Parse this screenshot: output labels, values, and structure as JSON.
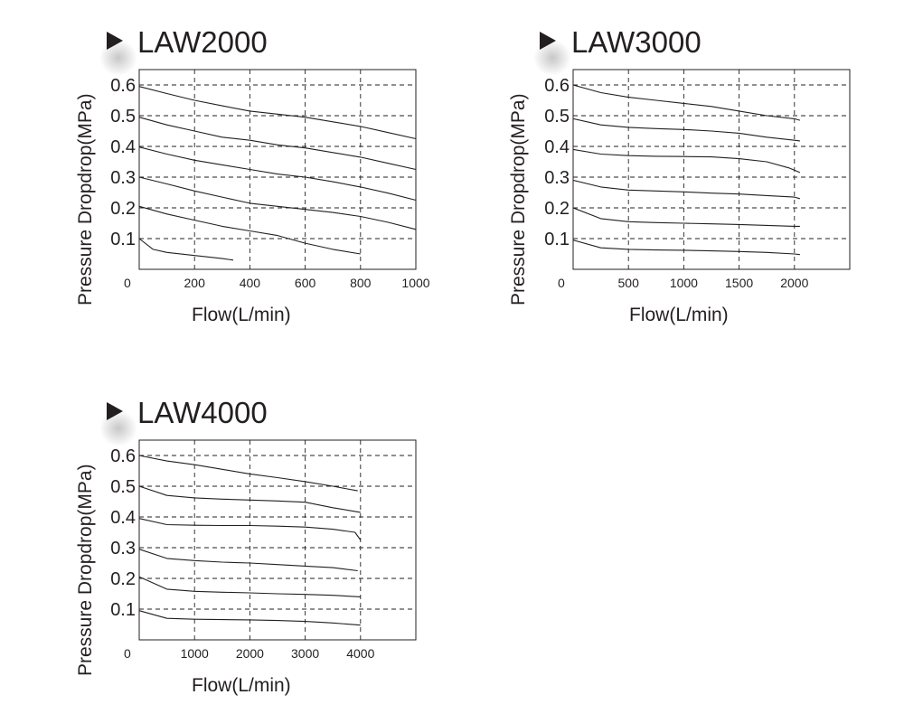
{
  "colors": {
    "ink": "#231f20",
    "grid": "#231f20",
    "frame": "#231f20",
    "shadow": "#bdbdbd"
  },
  "icons": {
    "title_marker": "play-triangle-icon"
  },
  "chart_data": [
    {
      "type": "line",
      "title": "LAW2000",
      "xlabel": "Flow(L/min)",
      "ylabel": "Pressure Dropdrop(MPa)",
      "xlim": [
        0,
        1000
      ],
      "ylim": [
        0,
        0.65
      ],
      "x_ticks": [
        0,
        200,
        400,
        600,
        800,
        1000
      ],
      "x_tick_labels": [
        "0",
        "200",
        "400",
        "600",
        "800",
        "1000"
      ],
      "y_ticks": [
        0.1,
        0.2,
        0.3,
        0.4,
        0.5,
        0.6
      ],
      "y_tick_labels": [
        "0.1",
        "0.2",
        "0.3",
        "0.4",
        "0.5",
        "0.6"
      ],
      "grid": true,
      "series": [
        {
          "x": [
            0,
            100,
            200,
            300,
            400,
            500,
            600,
            700,
            800,
            900,
            1000
          ],
          "y": [
            0.595,
            0.572,
            0.55,
            0.532,
            0.515,
            0.505,
            0.495,
            0.48,
            0.465,
            0.445,
            0.425
          ]
        },
        {
          "x": [
            0,
            100,
            200,
            300,
            400,
            500,
            600,
            700,
            800,
            900,
            1000
          ],
          "y": [
            0.495,
            0.47,
            0.45,
            0.43,
            0.42,
            0.405,
            0.395,
            0.38,
            0.365,
            0.345,
            0.325
          ]
        },
        {
          "x": [
            0,
            100,
            200,
            300,
            400,
            500,
            600,
            700,
            800,
            900,
            1000
          ],
          "y": [
            0.398,
            0.375,
            0.355,
            0.34,
            0.325,
            0.31,
            0.3,
            0.285,
            0.268,
            0.248,
            0.225
          ]
        },
        {
          "x": [
            0,
            100,
            200,
            300,
            400,
            500,
            600,
            700,
            800,
            900,
            1000
          ],
          "y": [
            0.3,
            0.278,
            0.255,
            0.235,
            0.215,
            0.205,
            0.195,
            0.185,
            0.172,
            0.153,
            0.13
          ]
        },
        {
          "x": [
            0,
            100,
            200,
            300,
            400,
            500,
            600,
            700,
            800
          ],
          "y": [
            0.205,
            0.18,
            0.16,
            0.14,
            0.125,
            0.11,
            0.085,
            0.065,
            0.05
          ]
        },
        {
          "x": [
            0,
            50,
            100,
            200,
            300,
            340
          ],
          "y": [
            0.1,
            0.065,
            0.055,
            0.045,
            0.035,
            0.03
          ]
        }
      ]
    },
    {
      "type": "line",
      "title": "LAW3000",
      "xlabel": "Flow(L/min)",
      "ylabel": "Pressure Dropdrop(MPa)",
      "xlim": [
        0,
        2500
      ],
      "ylim": [
        0,
        0.65
      ],
      "x_ticks": [
        0,
        500,
        1000,
        1500,
        2000
      ],
      "x_tick_labels": [
        "0",
        "500",
        "1000",
        "1500",
        "2000"
      ],
      "y_ticks": [
        0.1,
        0.2,
        0.3,
        0.4,
        0.5,
        0.6
      ],
      "y_tick_labels": [
        "0.1",
        "0.2",
        "0.3",
        "0.4",
        "0.5",
        "0.6"
      ],
      "grid": true,
      "series": [
        {
          "x": [
            0,
            250,
            500,
            750,
            1000,
            1250,
            1500,
            1750,
            2000,
            2050
          ],
          "y": [
            0.6,
            0.575,
            0.56,
            0.55,
            0.54,
            0.53,
            0.515,
            0.5,
            0.49,
            0.485
          ]
        },
        {
          "x": [
            0,
            250,
            500,
            750,
            1000,
            1250,
            1500,
            1750,
            2000,
            2050
          ],
          "y": [
            0.49,
            0.47,
            0.462,
            0.458,
            0.455,
            0.45,
            0.443,
            0.43,
            0.42,
            0.418
          ]
        },
        {
          "x": [
            0,
            250,
            500,
            750,
            1000,
            1250,
            1500,
            1750,
            1950,
            2050
          ],
          "y": [
            0.39,
            0.375,
            0.37,
            0.368,
            0.367,
            0.366,
            0.36,
            0.35,
            0.33,
            0.315
          ]
        },
        {
          "x": [
            0,
            250,
            500,
            750,
            1000,
            1250,
            1500,
            1750,
            2000,
            2050
          ],
          "y": [
            0.29,
            0.268,
            0.258,
            0.255,
            0.252,
            0.248,
            0.245,
            0.24,
            0.235,
            0.23
          ]
        },
        {
          "x": [
            0,
            250,
            500,
            750,
            1000,
            1250,
            1500,
            1750,
            2000,
            2050
          ],
          "y": [
            0.2,
            0.165,
            0.155,
            0.152,
            0.15,
            0.148,
            0.146,
            0.143,
            0.14,
            0.14
          ]
        },
        {
          "x": [
            0,
            250,
            500,
            750,
            1000,
            1250,
            1500,
            1750,
            2000,
            2050
          ],
          "y": [
            0.095,
            0.07,
            0.065,
            0.063,
            0.062,
            0.06,
            0.058,
            0.055,
            0.05,
            0.048
          ]
        }
      ]
    },
    {
      "type": "line",
      "title": "LAW4000",
      "xlabel": "Flow(L/min)",
      "ylabel": "Pressure Dropdrop(MPa)",
      "xlim": [
        0,
        5000
      ],
      "ylim": [
        0,
        0.65
      ],
      "x_ticks": [
        0,
        1000,
        2000,
        3000,
        4000
      ],
      "x_tick_labels": [
        "0",
        "1000",
        "2000",
        "3000",
        "4000"
      ],
      "y_ticks": [
        0.1,
        0.2,
        0.3,
        0.4,
        0.5,
        0.6
      ],
      "y_tick_labels": [
        "0.1",
        "0.2",
        "0.3",
        "0.4",
        "0.5",
        "0.6"
      ],
      "grid": true,
      "series": [
        {
          "x": [
            0,
            500,
            1000,
            1500,
            2000,
            2500,
            3000,
            3500,
            3950
          ],
          "y": [
            0.6,
            0.582,
            0.57,
            0.555,
            0.54,
            0.528,
            0.515,
            0.5,
            0.485
          ]
        },
        {
          "x": [
            0,
            500,
            1000,
            1500,
            2000,
            2500,
            3000,
            3500,
            4000
          ],
          "y": [
            0.5,
            0.47,
            0.462,
            0.458,
            0.455,
            0.452,
            0.448,
            0.43,
            0.415
          ]
        },
        {
          "x": [
            0,
            500,
            1000,
            1500,
            2000,
            2500,
            3000,
            3500,
            3900,
            4000
          ],
          "y": [
            0.395,
            0.375,
            0.373,
            0.372,
            0.372,
            0.37,
            0.367,
            0.36,
            0.35,
            0.325
          ]
        },
        {
          "x": [
            0,
            500,
            1000,
            1500,
            2000,
            2500,
            3000,
            3500,
            3950
          ],
          "y": [
            0.295,
            0.265,
            0.258,
            0.253,
            0.25,
            0.245,
            0.24,
            0.235,
            0.225
          ]
        },
        {
          "x": [
            0,
            500,
            1000,
            1500,
            2000,
            2500,
            3000,
            3500,
            4000
          ],
          "y": [
            0.205,
            0.165,
            0.158,
            0.155,
            0.153,
            0.15,
            0.148,
            0.145,
            0.14
          ]
        },
        {
          "x": [
            0,
            500,
            1000,
            1500,
            2000,
            2500,
            3000,
            3500,
            4000
          ],
          "y": [
            0.095,
            0.07,
            0.067,
            0.066,
            0.065,
            0.063,
            0.06,
            0.055,
            0.048
          ]
        }
      ]
    }
  ]
}
